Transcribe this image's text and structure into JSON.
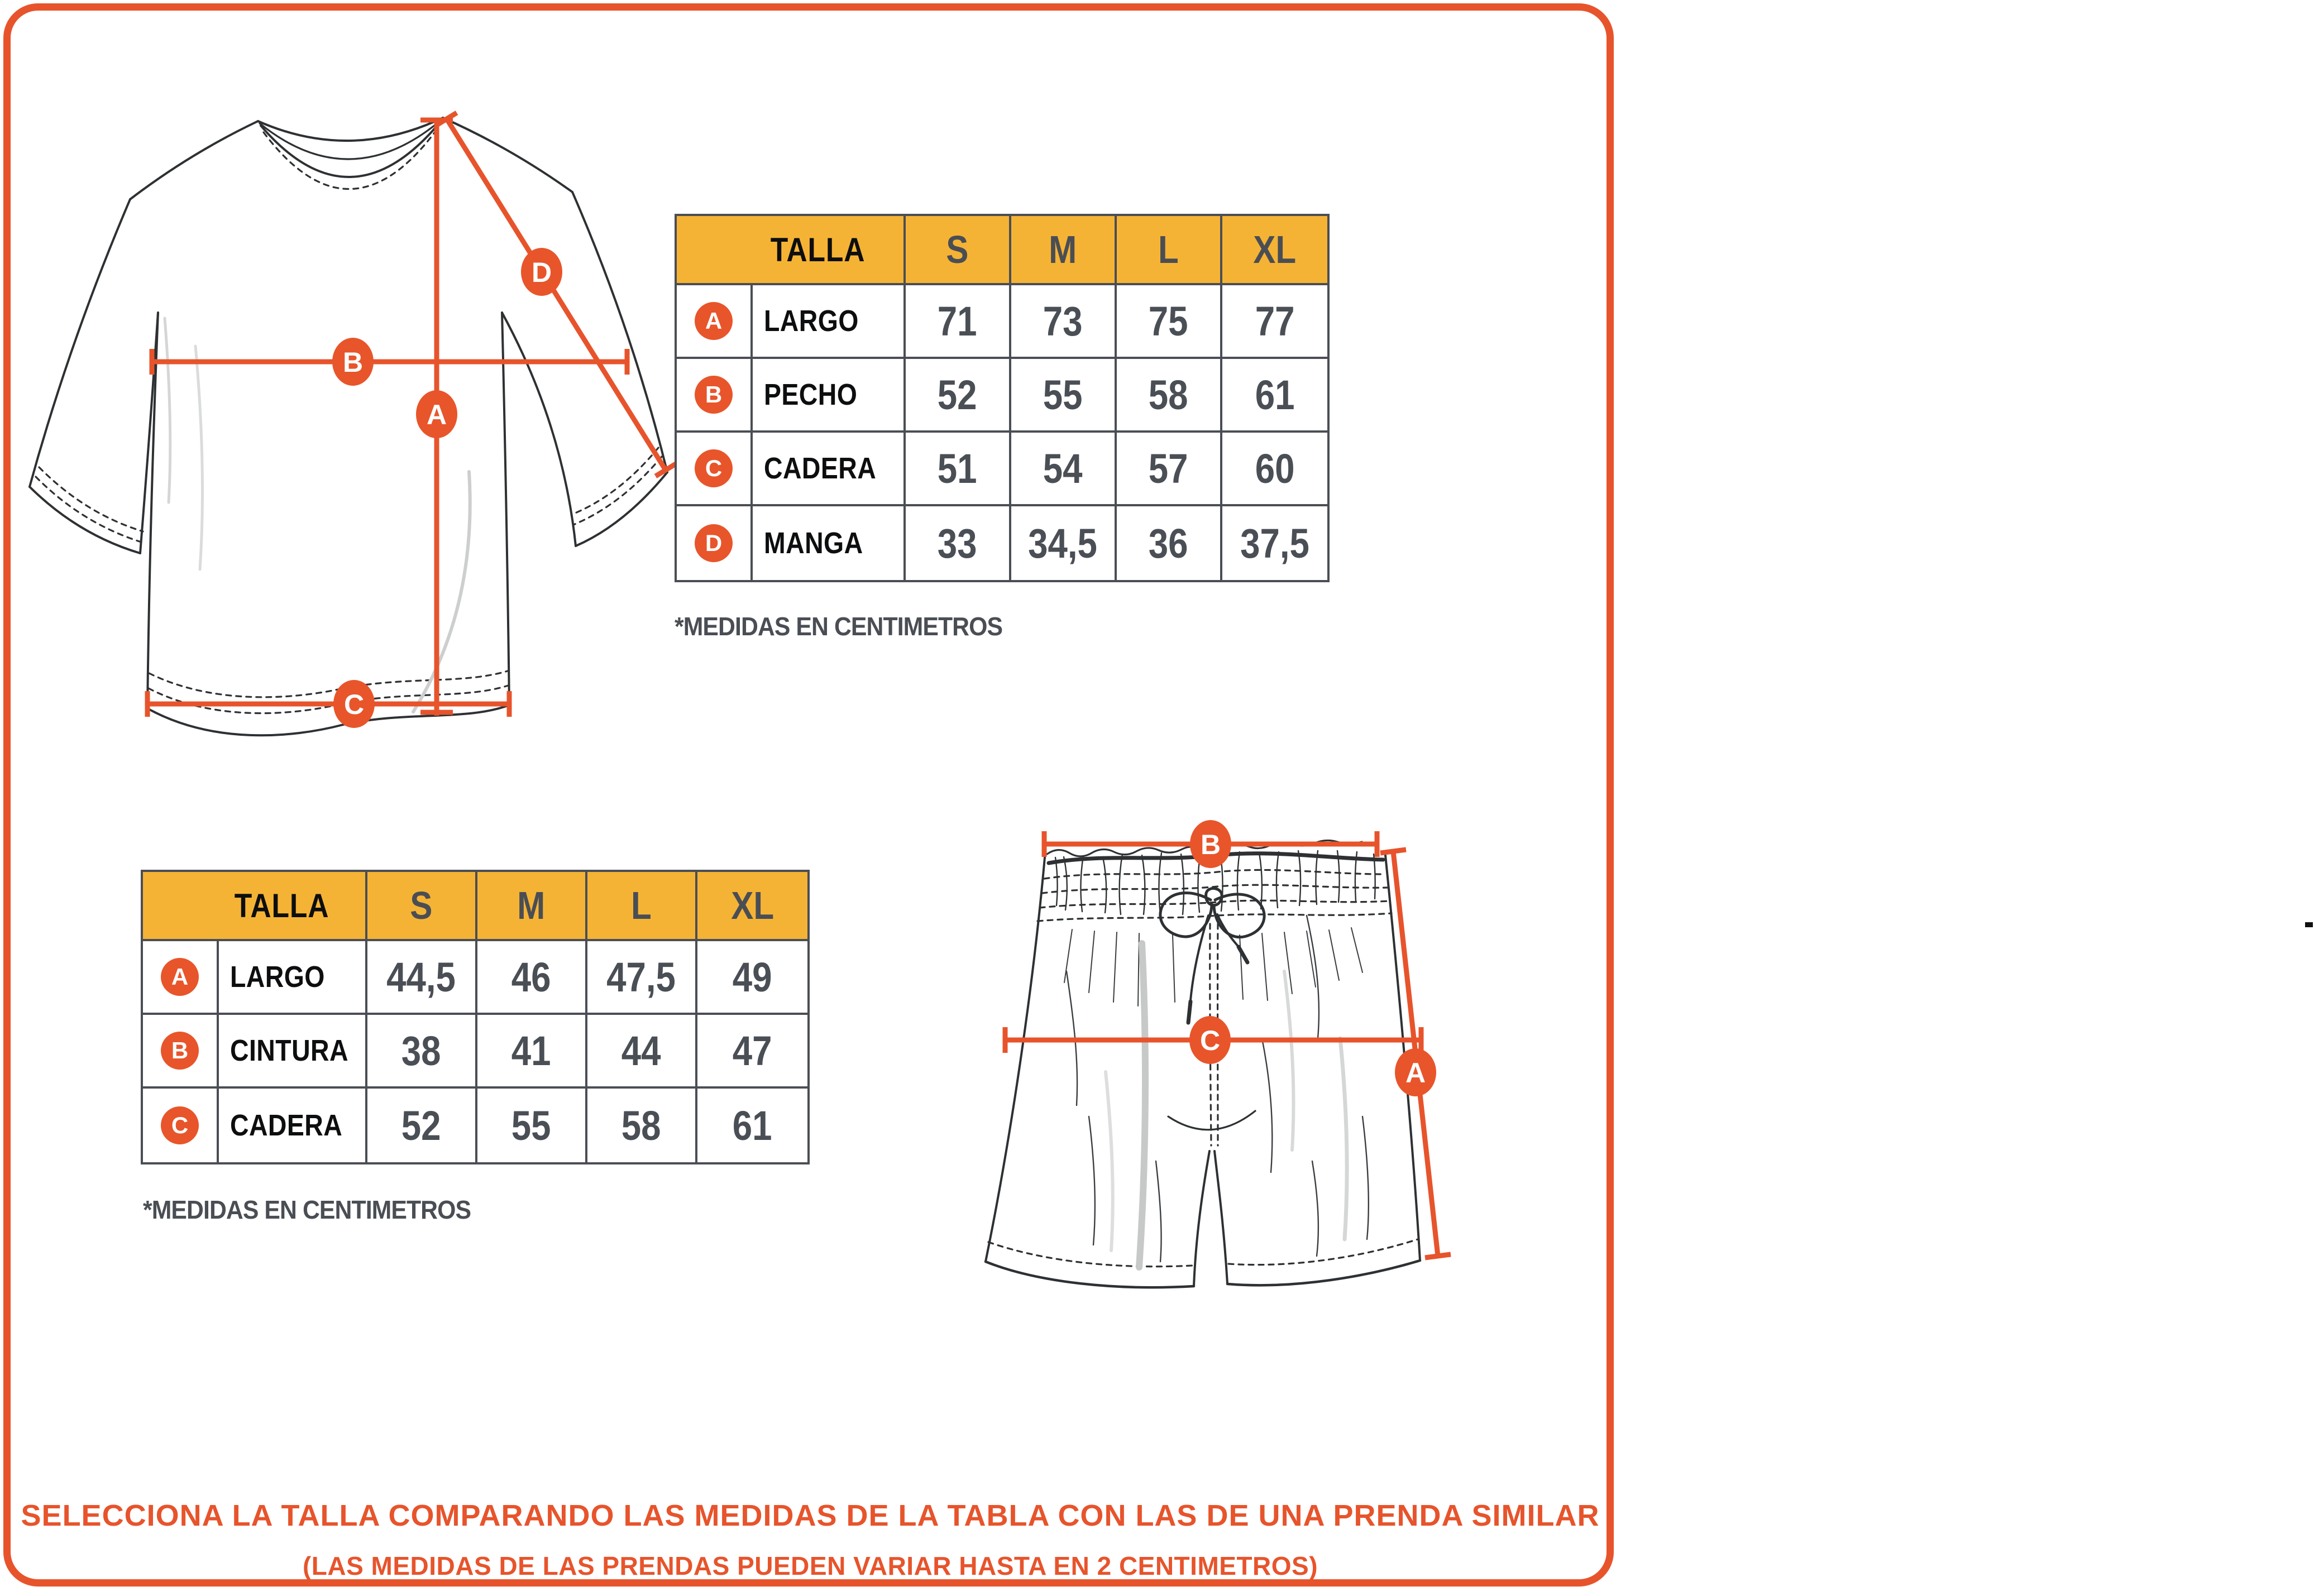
{
  "colors": {
    "accent_orange": "#E7542C",
    "marker_orange": "#E8552B",
    "header_yellow": "#F5B335",
    "grid_gray": "#4A4E54",
    "text_gray": "#4A4E55",
    "label_black": "#0D0E0F"
  },
  "shirt_table": {
    "header": {
      "label": "TALLA",
      "sizes": [
        "S",
        "M",
        "L",
        "XL"
      ]
    },
    "rows": [
      {
        "marker": "A",
        "label": "LARGO",
        "values": [
          "71",
          "73",
          "75",
          "77"
        ]
      },
      {
        "marker": "B",
        "label": "PECHO",
        "values": [
          "52",
          "55",
          "58",
          "61"
        ]
      },
      {
        "marker": "C",
        "label": "CADERA",
        "values": [
          "51",
          "54",
          "57",
          "60"
        ]
      },
      {
        "marker": "D",
        "label": "MANGA",
        "values": [
          "33",
          "34,5",
          "36",
          "37,5"
        ]
      }
    ],
    "note": "*MEDIDAS EN CENTIMETROS"
  },
  "shorts_table": {
    "header": {
      "label": "TALLA",
      "sizes": [
        "S",
        "M",
        "L",
        "XL"
      ]
    },
    "rows": [
      {
        "marker": "A",
        "label": "LARGO",
        "values": [
          "44,5",
          "46",
          "47,5",
          "49"
        ]
      },
      {
        "marker": "B",
        "label": "CINTURA",
        "values": [
          "38",
          "41",
          "44",
          "47"
        ]
      },
      {
        "marker": "C",
        "label": "CADERA",
        "values": [
          "52",
          "55",
          "58",
          "61"
        ]
      }
    ],
    "note": "*MEDIDAS EN CENTIMETROS"
  },
  "diagrams": {
    "tshirt": {
      "markers": {
        "a": "A",
        "b": "B",
        "c": "C",
        "d": "D"
      }
    },
    "shorts": {
      "markers": {
        "a": "A",
        "b": "B",
        "c": "C"
      }
    }
  },
  "footer": {
    "line1": "SELECCIONA LA TALLA COMPARANDO LAS MEDIDAS DE LA TABLA CON LAS DE UNA PRENDA SIMILAR",
    "line2": "(LAS MEDIDAS DE LAS PRENDAS PUEDEN VARIAR HASTA EN 2 CENTIMETROS)"
  }
}
